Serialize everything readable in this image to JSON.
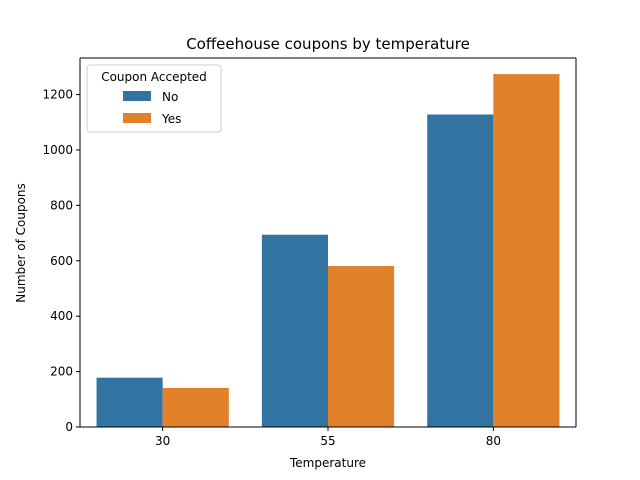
{
  "chart_data": {
    "type": "bar",
    "title": "Coffeehouse coupons by temperature",
    "xlabel": "Temperature",
    "ylabel": "Number of Coupons",
    "categories": [
      "30",
      "55",
      "80"
    ],
    "series": [
      {
        "name": "No",
        "color": "#3274a1",
        "values": [
          178,
          694,
          1128
        ]
      },
      {
        "name": "Yes",
        "color": "#e1812c",
        "values": [
          141,
          581,
          1274
        ]
      }
    ],
    "ylim": [
      0,
      1332
    ],
    "yticks": [
      0,
      200,
      400,
      600,
      800,
      1000,
      1200
    ],
    "grid": false,
    "legend": {
      "title": "Coupon Accepted",
      "placement": "top-left"
    }
  }
}
